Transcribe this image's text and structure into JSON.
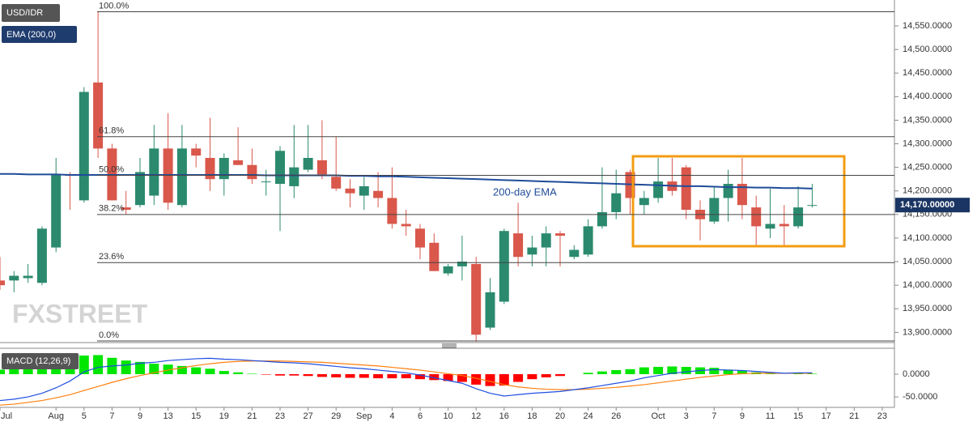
{
  "chart_data": {
    "type": "candlestick",
    "symbol": "USD/IDR",
    "indicator_label": "EMA (200,0)",
    "watermark": "FXSTREET",
    "categories": [
      "Jul",
      null,
      null,
      null,
      "Aug",
      null,
      "5",
      null,
      "7",
      null,
      "9",
      null,
      "13",
      null,
      "15",
      null,
      "19",
      null,
      "21",
      null,
      "23",
      null,
      "27",
      null,
      "29",
      null,
      "Sep",
      null,
      "4",
      null,
      "6",
      null,
      "10",
      null,
      "12",
      null,
      "16",
      null,
      "18",
      null,
      "20",
      null,
      "24",
      null,
      "26",
      null,
      null,
      "Oct",
      null,
      "3",
      null,
      "7",
      null,
      "9",
      null,
      "11",
      null,
      "15",
      null,
      "17",
      null,
      "21",
      null,
      "23"
    ],
    "open": [
      14010,
      14010,
      14015,
      14005,
      14080,
      14235,
      14180,
      14430,
      14290,
      14165,
      14170,
      14190,
      14290,
      14170,
      14290,
      14270,
      14225,
      14265,
      14255,
      14220,
      14215,
      14210,
      14245,
      14265,
      14230,
      14205,
      14190,
      14200,
      14185,
      14130,
      14120,
      14090,
      14025,
      14040,
      14045,
      13910,
      13965,
      14110,
      14065,
      14080,
      14110,
      14060,
      14065,
      14125,
      14155,
      14240,
      14170,
      14185,
      14220,
      14250,
      14160,
      14135,
      14185,
      14215,
      14165,
      14120,
      14130,
      14125,
      14170,
      null,
      null,
      null,
      null,
      null
    ],
    "high": [
      14060,
      14030,
      14045,
      14125,
      14270,
      14240,
      14420,
      14580,
      14300,
      14200,
      14270,
      14340,
      14365,
      14340,
      14300,
      14355,
      14280,
      14335,
      14290,
      14245,
      14295,
      14340,
      14340,
      14350,
      14315,
      14225,
      14230,
      14240,
      14250,
      14160,
      14130,
      14110,
      14045,
      14105,
      14060,
      14015,
      14120,
      14175,
      14105,
      14125,
      14115,
      14085,
      14140,
      14250,
      14245,
      14245,
      14200,
      14270,
      14270,
      14255,
      14180,
      14210,
      14245,
      14270,
      14190,
      14205,
      14170,
      14210,
      14215,
      null,
      null,
      null,
      null,
      null
    ],
    "low": [
      13990,
      13985,
      14005,
      14000,
      14070,
      14160,
      14175,
      14270,
      14180,
      14150,
      14165,
      14170,
      14160,
      14165,
      14250,
      14200,
      14190,
      14255,
      14215,
      14190,
      14115,
      14185,
      14240,
      14225,
      14200,
      14165,
      14160,
      14165,
      14120,
      14105,
      14055,
      14030,
      14020,
      14010,
      13880,
      13905,
      13960,
      14040,
      14040,
      14040,
      14040,
      14055,
      14060,
      14120,
      14140,
      14150,
      14150,
      14175,
      14190,
      14140,
      14095,
      14130,
      14135,
      14140,
      14085,
      14100,
      14085,
      14120,
      14165,
      null,
      null,
      null,
      null,
      null
    ],
    "close": [
      14000,
      14020,
      14020,
      14120,
      14235,
      14232,
      14410,
      14290,
      14180,
      14160,
      14240,
      14290,
      14175,
      14290,
      14275,
      14225,
      14270,
      14255,
      14225,
      14220,
      14285,
      14250,
      14270,
      14235,
      14205,
      14195,
      14210,
      14185,
      14130,
      14125,
      14080,
      14030,
      14040,
      14050,
      13895,
      13985,
      14115,
      14060,
      14080,
      14110,
      14105,
      14075,
      14125,
      14155,
      14195,
      14185,
      14185,
      14220,
      14200,
      14160,
      14140,
      14185,
      14215,
      14170,
      14125,
      14130,
      14125,
      14165,
      14170,
      null,
      null,
      null,
      null,
      null
    ],
    "up_color": "#2b8a6e",
    "down_color": "#d9574b",
    "ema": {
      "name": "200-day EMA",
      "color": "#1f4c9a",
      "values": [
        14236,
        14236,
        14235,
        14235,
        14235,
        14234,
        14234,
        14234,
        14234,
        14234,
        14234,
        14234,
        14234,
        14234,
        14234,
        14234,
        14234,
        14234,
        14234,
        14233,
        14233,
        14233,
        14233,
        14233,
        14233,
        14232,
        14232,
        14231,
        14231,
        14230,
        14229,
        14228,
        14227,
        14226,
        14225,
        14224,
        14223,
        14222,
        14221,
        14220,
        14219,
        14218,
        14217,
        14216,
        14215,
        14214,
        14213,
        14212,
        14211,
        14210,
        14210,
        14209,
        14208,
        14208,
        14207,
        14207,
        14206,
        14206,
        14205,
        null,
        null,
        null,
        null,
        null
      ]
    },
    "ylim": [
      13880,
      14605
    ],
    "yticks": [
      {
        "value": 14550,
        "label": "14,550.0000"
      },
      {
        "value": 14500,
        "label": "14,500.0000"
      },
      {
        "value": 14450,
        "label": "14,450.0000"
      },
      {
        "value": 14400,
        "label": "14,400.0000"
      },
      {
        "value": 14350,
        "label": "14,350.0000"
      },
      {
        "value": 14300,
        "label": "14,300.0000"
      },
      {
        "value": 14250,
        "label": "14,250.0000"
      },
      {
        "value": 14200,
        "label": "14,200.0000"
      },
      {
        "value": 14150,
        "label": "14,150.0000"
      },
      {
        "value": 14100,
        "label": "14,100.0000"
      },
      {
        "value": 14050,
        "label": "14,050.0000"
      },
      {
        "value": 14000,
        "label": "14,000.0000"
      },
      {
        "value": 13950,
        "label": "13,950.0000"
      },
      {
        "value": 13900,
        "label": "13,900.0000"
      }
    ],
    "last_price": {
      "value": 14170,
      "label": "14,170.00000"
    },
    "fib_levels": [
      {
        "value": 14580,
        "label": "100.0%"
      },
      {
        "value": 14315,
        "label": "61.8%"
      },
      {
        "value": 14233,
        "label": "50.0%"
      },
      {
        "value": 14150,
        "label": "38.2%"
      },
      {
        "value": 14048,
        "label": "23.6%"
      },
      {
        "value": 13880,
        "label": "0.0%"
      }
    ],
    "macd": {
      "type": "macd",
      "label": "MACD (12,26,9)",
      "macd": {
        "color": "#1f4ee0",
        "values": [
          -58,
          -55,
          -50,
          -42,
          -30,
          -15,
          5,
          15,
          18,
          20,
          24,
          26,
          30,
          32,
          34,
          35,
          33,
          32,
          30,
          28,
          26,
          25,
          23,
          20,
          17,
          14,
          12,
          9,
          6,
          3,
          -2,
          -8,
          -14,
          -20,
          -32,
          -42,
          -48,
          -45,
          -42,
          -40,
          -38,
          -34,
          -30,
          -25,
          -20,
          -15,
          -8,
          -3,
          2,
          5,
          8,
          10,
          9,
          8,
          6,
          4,
          2,
          3,
          3,
          null,
          null,
          null,
          null,
          null
        ]
      },
      "signal": {
        "color": "#ff7f0e",
        "values": [
          -68,
          -66,
          -62,
          -58,
          -52,
          -45,
          -36,
          -27,
          -18,
          -10,
          -3,
          3,
          9,
          14,
          19,
          23,
          26,
          28,
          29,
          29,
          29,
          28,
          27,
          26,
          24,
          22,
          20,
          18,
          15,
          12,
          9,
          5,
          1,
          -3,
          -9,
          -16,
          -23,
          -28,
          -31,
          -33,
          -34,
          -34,
          -33,
          -31,
          -29,
          -26,
          -23,
          -19,
          -15,
          -11,
          -7,
          -4,
          -1,
          1,
          2,
          2,
          2,
          2,
          2,
          null,
          null,
          null,
          null,
          null
        ]
      },
      "histogram": {
        "up_color": "#00e600",
        "down_color": "#ff0000",
        "values": [
          10,
          11,
          12,
          16,
          22,
          30,
          41,
          42,
          36,
          30,
          27,
          23,
          21,
          18,
          15,
          12,
          7,
          4,
          1,
          -1,
          -3,
          -3,
          -4,
          -6,
          -7,
          -8,
          -8,
          -9,
          -9,
          -9,
          -11,
          -13,
          -15,
          -17,
          -23,
          -26,
          -25,
          -17,
          -11,
          -7,
          -4,
          0,
          3,
          6,
          9,
          11,
          15,
          16,
          17,
          16,
          15,
          14,
          10,
          7,
          4,
          2,
          0,
          1,
          1,
          null,
          null,
          null,
          null,
          null
        ]
      },
      "ylim": [
        -73,
        57
      ],
      "yticks": [
        {
          "value": 0,
          "label": "0.0000"
        },
        {
          "value": -50,
          "label": "-50.0000"
        }
      ]
    }
  }
}
